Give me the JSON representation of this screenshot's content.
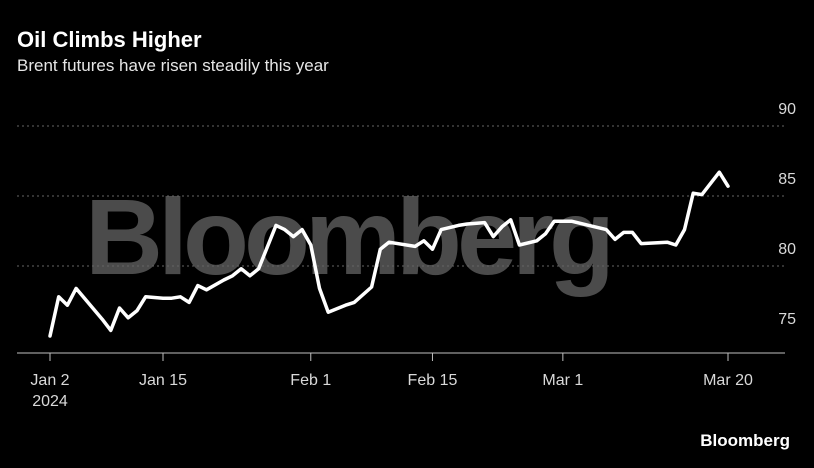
{
  "title": "Oil Climbs Higher",
  "subtitle": "Brent futures have risen steadily this year",
  "watermark": "Bloomberg",
  "source": "Bloomberg",
  "colors": {
    "background": "#000000",
    "line": "#ffffff",
    "watermark": "#4b4b4b",
    "grid": "#666666"
  },
  "chart_data": {
    "type": "line",
    "title": "Oil Climbs Higher",
    "subtitle": "Brent futures have risen steadily this year",
    "xlabel": "",
    "ylabel": "",
    "ylim": [
      74,
      90
    ],
    "y_ticks": [
      75,
      80,
      85,
      90
    ],
    "y_axis_side": "right",
    "grid": "horizontal dotted",
    "x_ticks": [
      {
        "date": "2024-01-02",
        "label": "Jan 2",
        "sublabel": "2024"
      },
      {
        "date": "2024-01-15",
        "label": "Jan 15"
      },
      {
        "date": "2024-02-01",
        "label": "Feb 1"
      },
      {
        "date": "2024-02-15",
        "label": "Feb 15"
      },
      {
        "date": "2024-03-01",
        "label": "Mar 1"
      },
      {
        "date": "2024-03-20",
        "label": "Mar 20"
      }
    ],
    "series": [
      {
        "points": [
          [
            "2024-01-02",
            75.0
          ],
          [
            "2024-01-03",
            77.8
          ],
          [
            "2024-01-04",
            77.2
          ],
          [
            "2024-01-05",
            78.4
          ],
          [
            "2024-01-08",
            76.2
          ],
          [
            "2024-01-09",
            75.4
          ],
          [
            "2024-01-10",
            77.0
          ],
          [
            "2024-01-11",
            76.3
          ],
          [
            "2024-01-12",
            76.8
          ],
          [
            "2024-01-13",
            77.8
          ],
          [
            "2024-01-15",
            77.7
          ],
          [
            "2024-01-16",
            77.7
          ],
          [
            "2024-01-17",
            77.8
          ],
          [
            "2024-01-18",
            77.4
          ],
          [
            "2024-01-19",
            78.6
          ],
          [
            "2024-01-20",
            78.3
          ],
          [
            "2024-01-22",
            79.0
          ],
          [
            "2024-01-23",
            79.3
          ],
          [
            "2024-01-24",
            79.8
          ],
          [
            "2024-01-25",
            79.3
          ],
          [
            "2024-01-26",
            79.8
          ],
          [
            "2024-01-28",
            82.9
          ],
          [
            "2024-01-29",
            82.6
          ],
          [
            "2024-01-30",
            82.1
          ],
          [
            "2024-01-31",
            82.6
          ],
          [
            "2024-02-01",
            81.5
          ],
          [
            "2024-02-02",
            78.4
          ],
          [
            "2024-02-03",
            76.7
          ],
          [
            "2024-02-05",
            77.2
          ],
          [
            "2024-02-06",
            77.4
          ],
          [
            "2024-02-08",
            78.5
          ],
          [
            "2024-02-09",
            81.2
          ],
          [
            "2024-02-10",
            81.7
          ],
          [
            "2024-02-13",
            81.4
          ],
          [
            "2024-02-14",
            81.8
          ],
          [
            "2024-02-15",
            81.2
          ],
          [
            "2024-02-16",
            82.6
          ],
          [
            "2024-02-18",
            82.9
          ],
          [
            "2024-02-19",
            83.0
          ],
          [
            "2024-02-21",
            83.1
          ],
          [
            "2024-02-22",
            82.1
          ],
          [
            "2024-02-23",
            82.8
          ],
          [
            "2024-02-24",
            83.3
          ],
          [
            "2024-02-25",
            81.5
          ],
          [
            "2024-02-27",
            81.8
          ],
          [
            "2024-02-28",
            82.3
          ],
          [
            "2024-02-29",
            83.2
          ],
          [
            "2024-03-02",
            83.2
          ],
          [
            "2024-03-04",
            82.9
          ],
          [
            "2024-03-06",
            82.6
          ],
          [
            "2024-03-07",
            81.9
          ],
          [
            "2024-03-08",
            82.4
          ],
          [
            "2024-03-09",
            82.4
          ],
          [
            "2024-03-10",
            81.6
          ],
          [
            "2024-03-13",
            81.7
          ],
          [
            "2024-03-14",
            81.5
          ],
          [
            "2024-03-15",
            82.6
          ],
          [
            "2024-03-16",
            85.2
          ],
          [
            "2024-03-17",
            85.1
          ],
          [
            "2024-03-19",
            86.7
          ],
          [
            "2024-03-20",
            85.7
          ]
        ]
      }
    ]
  }
}
